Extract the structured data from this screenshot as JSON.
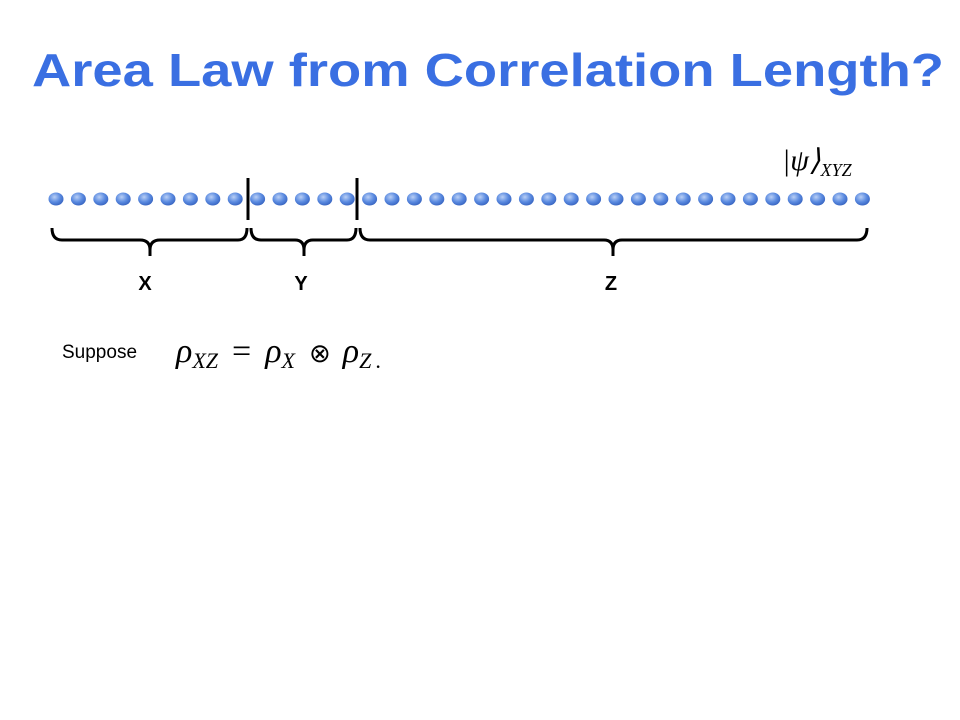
{
  "title": "Area Law from Correlation Length?",
  "state": {
    "ket": "|ψ⟩",
    "subscript": "XYZ"
  },
  "regions": [
    "X",
    "Y",
    "Z"
  ],
  "statement": {
    "lead": "Suppose",
    "lhs": {
      "symbol": "ρ",
      "sub": "XZ"
    },
    "eq": "=",
    "a": {
      "symbol": "ρ",
      "sub": "X"
    },
    "op": "⊗",
    "b": {
      "symbol": "ρ",
      "sub": "Z"
    },
    "end": "."
  }
}
